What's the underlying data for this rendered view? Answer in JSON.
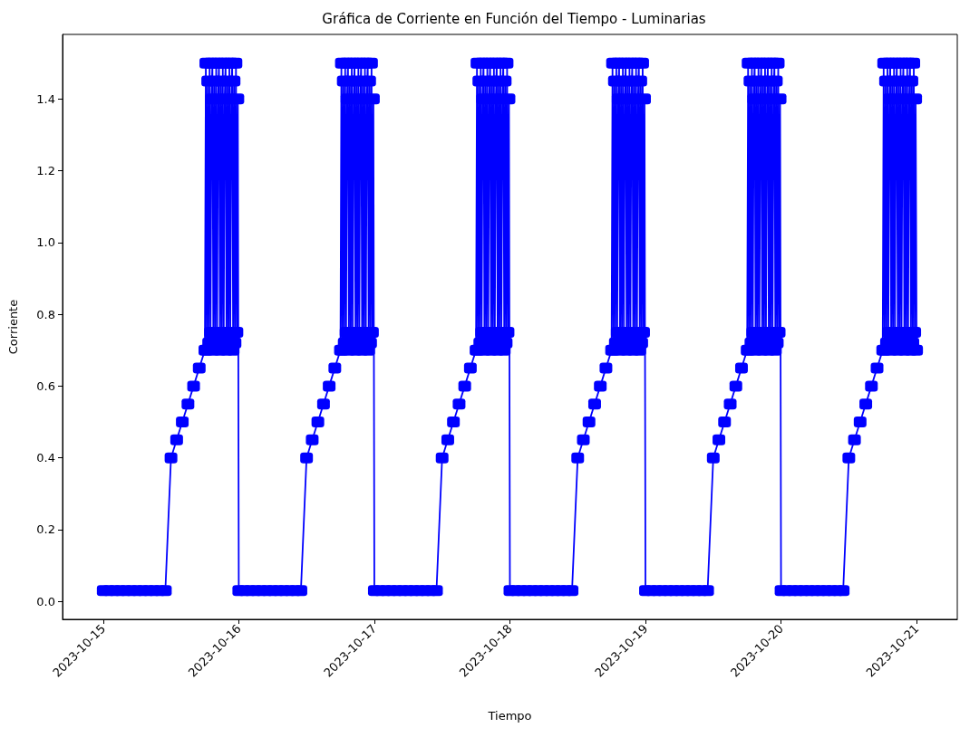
{
  "chart_data": {
    "type": "line",
    "title": "Gráfica de Corriente en Función del Tiempo - Luminarias",
    "xlabel": "Tiempo",
    "ylabel": "Corriente",
    "series": [
      {
        "color": "#0000ff",
        "x": [
          "2023-10-15T00:00",
          "2023-10-15T01:00",
          "2023-10-15T02:00",
          "2023-10-15T03:00",
          "2023-10-15T04:00",
          "2023-10-15T05:00",
          "2023-10-15T06:00",
          "2023-10-15T07:00",
          "2023-10-15T08:00",
          "2023-10-15T09:00",
          "2023-10-15T10:00",
          "2023-10-15T11:00",
          "2023-10-15T12:00",
          "2023-10-15T13:00",
          "2023-10-15T14:00",
          "2023-10-15T15:00",
          "2023-10-15T16:00",
          "2023-10-15T17:00",
          "2023-10-15T18:00",
          "2023-10-15T18:10",
          "2023-10-15T18:20",
          "2023-10-15T18:30",
          "2023-10-15T18:40",
          "2023-10-15T18:50",
          "2023-10-15T19:00",
          "2023-10-15T19:10",
          "2023-10-15T19:20",
          "2023-10-15T19:30",
          "2023-10-15T19:40",
          "2023-10-15T19:50",
          "2023-10-15T20:00",
          "2023-10-15T20:10",
          "2023-10-15T20:20",
          "2023-10-15T20:30",
          "2023-10-15T20:40",
          "2023-10-15T20:50",
          "2023-10-15T21:00",
          "2023-10-15T21:10",
          "2023-10-15T21:20",
          "2023-10-15T21:30",
          "2023-10-15T21:40",
          "2023-10-15T21:50",
          "2023-10-15T22:00",
          "2023-10-15T22:10",
          "2023-10-15T22:20",
          "2023-10-15T22:30",
          "2023-10-15T22:40",
          "2023-10-15T22:50",
          "2023-10-15T23:00",
          "2023-10-15T23:10",
          "2023-10-15T23:20",
          "2023-10-15T23:30",
          "2023-10-15T23:40",
          "2023-10-15T23:50",
          "2023-10-16T00:00",
          "2023-10-16T01:00",
          "2023-10-16T02:00",
          "2023-10-16T03:00",
          "2023-10-16T04:00",
          "2023-10-16T05:00",
          "2023-10-16T06:00",
          "2023-10-16T07:00",
          "2023-10-16T08:00",
          "2023-10-16T09:00",
          "2023-10-16T10:00",
          "2023-10-16T11:00",
          "2023-10-16T12:00",
          "2023-10-16T13:00",
          "2023-10-16T14:00",
          "2023-10-16T15:00",
          "2023-10-16T16:00",
          "2023-10-16T17:00",
          "2023-10-16T18:00",
          "2023-10-16T18:10",
          "2023-10-16T18:20",
          "2023-10-16T18:30",
          "2023-10-16T18:40",
          "2023-10-16T18:50",
          "2023-10-16T19:00",
          "2023-10-16T19:10",
          "2023-10-16T19:20",
          "2023-10-16T19:30",
          "2023-10-16T19:40",
          "2023-10-16T19:50",
          "2023-10-16T20:00",
          "2023-10-16T20:10",
          "2023-10-16T20:20",
          "2023-10-16T20:30",
          "2023-10-16T20:40",
          "2023-10-16T20:50",
          "2023-10-16T21:00",
          "2023-10-16T21:10",
          "2023-10-16T21:20",
          "2023-10-16T21:30",
          "2023-10-16T21:40",
          "2023-10-16T21:50",
          "2023-10-16T22:00",
          "2023-10-16T22:10",
          "2023-10-16T22:20",
          "2023-10-16T22:30",
          "2023-10-16T22:40",
          "2023-10-16T22:50",
          "2023-10-16T23:00",
          "2023-10-16T23:10",
          "2023-10-16T23:20",
          "2023-10-16T23:30",
          "2023-10-16T23:40",
          "2023-10-16T23:50",
          "2023-10-17T00:00",
          "2023-10-17T01:00",
          "2023-10-17T02:00",
          "2023-10-17T03:00",
          "2023-10-17T04:00",
          "2023-10-17T05:00",
          "2023-10-17T06:00",
          "2023-10-17T07:00",
          "2023-10-17T08:00",
          "2023-10-17T09:00",
          "2023-10-17T10:00",
          "2023-10-17T11:00",
          "2023-10-17T12:00",
          "2023-10-17T13:00",
          "2023-10-17T14:00",
          "2023-10-17T15:00",
          "2023-10-17T16:00",
          "2023-10-17T17:00",
          "2023-10-17T18:00",
          "2023-10-17T18:10",
          "2023-10-17T18:20",
          "2023-10-17T18:30",
          "2023-10-17T18:40",
          "2023-10-17T18:50",
          "2023-10-17T19:00",
          "2023-10-17T19:10",
          "2023-10-17T19:20",
          "2023-10-17T19:30",
          "2023-10-17T19:40",
          "2023-10-17T19:50",
          "2023-10-17T20:00",
          "2023-10-17T20:10",
          "2023-10-17T20:20",
          "2023-10-17T20:30",
          "2023-10-17T20:40",
          "2023-10-17T20:50",
          "2023-10-17T21:00",
          "2023-10-17T21:10",
          "2023-10-17T21:20",
          "2023-10-17T21:30",
          "2023-10-17T21:40",
          "2023-10-17T21:50",
          "2023-10-17T22:00",
          "2023-10-17T22:10",
          "2023-10-17T22:20",
          "2023-10-17T22:30",
          "2023-10-17T22:40",
          "2023-10-17T22:50",
          "2023-10-17T23:00",
          "2023-10-17T23:10",
          "2023-10-17T23:20",
          "2023-10-17T23:30",
          "2023-10-17T23:40",
          "2023-10-17T23:50",
          "2023-10-18T00:00",
          "2023-10-18T01:00",
          "2023-10-18T02:00",
          "2023-10-18T03:00",
          "2023-10-18T04:00",
          "2023-10-18T05:00",
          "2023-10-18T06:00",
          "2023-10-18T07:00",
          "2023-10-18T08:00",
          "2023-10-18T09:00",
          "2023-10-18T10:00",
          "2023-10-18T11:00",
          "2023-10-18T12:00",
          "2023-10-18T13:00",
          "2023-10-18T14:00",
          "2023-10-18T15:00",
          "2023-10-18T16:00",
          "2023-10-18T17:00",
          "2023-10-18T18:00",
          "2023-10-18T18:10",
          "2023-10-18T18:20",
          "2023-10-18T18:30",
          "2023-10-18T18:40",
          "2023-10-18T18:50",
          "2023-10-18T19:00",
          "2023-10-18T19:10",
          "2023-10-18T19:20",
          "2023-10-18T19:30",
          "2023-10-18T19:40",
          "2023-10-18T19:50",
          "2023-10-18T20:00",
          "2023-10-18T20:10",
          "2023-10-18T20:20",
          "2023-10-18T20:30",
          "2023-10-18T20:40",
          "2023-10-18T20:50",
          "2023-10-18T21:00",
          "2023-10-18T21:10",
          "2023-10-18T21:20",
          "2023-10-18T21:30",
          "2023-10-18T21:40",
          "2023-10-18T21:50",
          "2023-10-18T22:00",
          "2023-10-18T22:10",
          "2023-10-18T22:20",
          "2023-10-18T22:30",
          "2023-10-18T22:40",
          "2023-10-18T22:50",
          "2023-10-18T23:00",
          "2023-10-18T23:10",
          "2023-10-18T23:20",
          "2023-10-18T23:30",
          "2023-10-18T23:40",
          "2023-10-18T23:50",
          "2023-10-19T00:00",
          "2023-10-19T01:00",
          "2023-10-19T02:00",
          "2023-10-19T03:00",
          "2023-10-19T04:00",
          "2023-10-19T05:00",
          "2023-10-19T06:00",
          "2023-10-19T07:00",
          "2023-10-19T08:00",
          "2023-10-19T09:00",
          "2023-10-19T10:00",
          "2023-10-19T11:00",
          "2023-10-19T12:00",
          "2023-10-19T13:00",
          "2023-10-19T14:00",
          "2023-10-19T15:00",
          "2023-10-19T16:00",
          "2023-10-19T17:00",
          "2023-10-19T18:00",
          "2023-10-19T18:10",
          "2023-10-19T18:20",
          "2023-10-19T18:30",
          "2023-10-19T18:40",
          "2023-10-19T18:50",
          "2023-10-19T19:00",
          "2023-10-19T19:10",
          "2023-10-19T19:20",
          "2023-10-19T19:30",
          "2023-10-19T19:40",
          "2023-10-19T19:50",
          "2023-10-19T20:00",
          "2023-10-19T20:10",
          "2023-10-19T20:20",
          "2023-10-19T20:30",
          "2023-10-19T20:40",
          "2023-10-19T20:50",
          "2023-10-19T21:00",
          "2023-10-19T21:10",
          "2023-10-19T21:20",
          "2023-10-19T21:30",
          "2023-10-19T21:40",
          "2023-10-19T21:50",
          "2023-10-19T22:00",
          "2023-10-19T22:10",
          "2023-10-19T22:20",
          "2023-10-19T22:30",
          "2023-10-19T22:40",
          "2023-10-19T22:50",
          "2023-10-19T23:00",
          "2023-10-19T23:10",
          "2023-10-19T23:20",
          "2023-10-19T23:30",
          "2023-10-19T23:40",
          "2023-10-19T23:50",
          "2023-10-20T00:00",
          "2023-10-20T01:00",
          "2023-10-20T02:00",
          "2023-10-20T03:00",
          "2023-10-20T04:00",
          "2023-10-20T05:00",
          "2023-10-20T06:00",
          "2023-10-20T07:00",
          "2023-10-20T08:00",
          "2023-10-20T09:00",
          "2023-10-20T10:00",
          "2023-10-20T11:00",
          "2023-10-20T12:00",
          "2023-10-20T13:00",
          "2023-10-20T14:00",
          "2023-10-20T15:00",
          "2023-10-20T16:00",
          "2023-10-20T17:00",
          "2023-10-20T18:00",
          "2023-10-20T18:10",
          "2023-10-20T18:20",
          "2023-10-20T18:30",
          "2023-10-20T18:40",
          "2023-10-20T18:50",
          "2023-10-20T19:00",
          "2023-10-20T19:10",
          "2023-10-20T19:20",
          "2023-10-20T19:30",
          "2023-10-20T19:40",
          "2023-10-20T19:50",
          "2023-10-20T20:00",
          "2023-10-20T20:10",
          "2023-10-20T20:20",
          "2023-10-20T20:30",
          "2023-10-20T20:40",
          "2023-10-20T20:50",
          "2023-10-20T21:00",
          "2023-10-20T21:10",
          "2023-10-20T21:20",
          "2023-10-20T21:30",
          "2023-10-20T21:40",
          "2023-10-20T21:50",
          "2023-10-20T22:00",
          "2023-10-20T22:10",
          "2023-10-20T22:20",
          "2023-10-20T22:30",
          "2023-10-20T22:40",
          "2023-10-20T22:50",
          "2023-10-20T23:00",
          "2023-10-20T23:10",
          "2023-10-20T23:20",
          "2023-10-20T23:30",
          "2023-10-20T23:40",
          "2023-10-20T23:50",
          "2023-10-21T00:00"
        ],
        "values": [
          0.03,
          0.03,
          0.03,
          0.03,
          0.03,
          0.03,
          0.03,
          0.03,
          0.03,
          0.03,
          0.03,
          0.03,
          0.4,
          0.45,
          0.5,
          0.55,
          0.6,
          0.65,
          0.7,
          1.5,
          0.7,
          1.45,
          0.72,
          1.5,
          0.75,
          1.4,
          1.5,
          0.7,
          1.45,
          0.72,
          1.5,
          0.75,
          1.4,
          1.5,
          0.7,
          1.45,
          0.72,
          1.5,
          0.75,
          1.4,
          1.5,
          0.7,
          1.45,
          0.72,
          1.5,
          0.75,
          1.4,
          1.5,
          0.7,
          1.45,
          0.72,
          1.5,
          0.75,
          1.4,
          0.03,
          0.03,
          0.03,
          0.03,
          0.03,
          0.03,
          0.03,
          0.03,
          0.03,
          0.03,
          0.03,
          0.03,
          0.4,
          0.45,
          0.5,
          0.55,
          0.6,
          0.65,
          0.7,
          1.5,
          0.7,
          1.45,
          0.72,
          1.5,
          0.75,
          1.4,
          1.5,
          0.7,
          1.45,
          0.72,
          1.5,
          0.75,
          1.4,
          1.5,
          0.7,
          1.45,
          0.72,
          1.5,
          0.75,
          1.4,
          1.5,
          0.7,
          1.45,
          0.72,
          1.5,
          0.75,
          1.4,
          1.5,
          0.7,
          1.45,
          0.72,
          1.5,
          0.75,
          1.4,
          0.03,
          0.03,
          0.03,
          0.03,
          0.03,
          0.03,
          0.03,
          0.03,
          0.03,
          0.03,
          0.03,
          0.03,
          0.4,
          0.45,
          0.5,
          0.55,
          0.6,
          0.65,
          0.7,
          1.5,
          0.7,
          1.45,
          0.72,
          1.5,
          0.75,
          1.4,
          1.5,
          0.7,
          1.45,
          0.72,
          1.5,
          0.75,
          1.4,
          1.5,
          0.7,
          1.45,
          0.72,
          1.5,
          0.75,
          1.4,
          1.5,
          0.7,
          1.45,
          0.72,
          1.5,
          0.75,
          1.4,
          1.5,
          0.7,
          1.45,
          0.72,
          1.5,
          0.75,
          1.4,
          0.03,
          0.03,
          0.03,
          0.03,
          0.03,
          0.03,
          0.03,
          0.03,
          0.03,
          0.03,
          0.03,
          0.03,
          0.4,
          0.45,
          0.5,
          0.55,
          0.6,
          0.65,
          0.7,
          1.5,
          0.7,
          1.45,
          0.72,
          1.5,
          0.75,
          1.4,
          1.5,
          0.7,
          1.45,
          0.72,
          1.5,
          0.75,
          1.4,
          1.5,
          0.7,
          1.45,
          0.72,
          1.5,
          0.75,
          1.4,
          1.5,
          0.7,
          1.45,
          0.72,
          1.5,
          0.75,
          1.4,
          1.5,
          0.7,
          1.45,
          0.72,
          1.5,
          0.75,
          1.4,
          0.03,
          0.03,
          0.03,
          0.03,
          0.03,
          0.03,
          0.03,
          0.03,
          0.03,
          0.03,
          0.03,
          0.03,
          0.4,
          0.45,
          0.5,
          0.55,
          0.6,
          0.65,
          0.7,
          1.5,
          0.7,
          1.45,
          0.72,
          1.5,
          0.75,
          1.4,
          1.5,
          0.7,
          1.45,
          0.72,
          1.5,
          0.75,
          1.4,
          1.5,
          0.7,
          1.45,
          0.72,
          1.5,
          0.75,
          1.4,
          1.5,
          0.7,
          1.45,
          0.72,
          1.5,
          0.75,
          1.4,
          1.5,
          0.7,
          1.45,
          0.72,
          1.5,
          0.75,
          1.4,
          0.03,
          0.03,
          0.03,
          0.03,
          0.03,
          0.03,
          0.03,
          0.03,
          0.03,
          0.03,
          0.03,
          0.03,
          0.4,
          0.45,
          0.5,
          0.55,
          0.6,
          0.65,
          0.7,
          1.5,
          0.7,
          1.45,
          0.72,
          1.5,
          0.75,
          1.4,
          1.5,
          0.7,
          1.45,
          0.72,
          1.5,
          0.75,
          1.4,
          1.5,
          0.7,
          1.45,
          0.72,
          1.5,
          0.75,
          1.4,
          1.5,
          0.7,
          1.45,
          0.72,
          1.5,
          0.75,
          1.4,
          1.5,
          0.7,
          1.45,
          0.72,
          1.5,
          0.75,
          1.4,
          0.7
        ]
      }
    ],
    "xlim": [
      "2023-10-14T16:48",
      "2023-10-21T07:12"
    ],
    "xticks": [
      "2023-10-15",
      "2023-10-16",
      "2023-10-17",
      "2023-10-18",
      "2023-10-19",
      "2023-10-20",
      "2023-10-21"
    ],
    "ylim": [
      -0.05,
      1.58
    ],
    "yticks": [
      {
        "value": 0,
        "label": "0.0"
      },
      {
        "value": 0.2,
        "label": "0.2"
      },
      {
        "value": 0.4,
        "label": "0.4"
      },
      {
        "value": 0.6,
        "label": "0.6"
      },
      {
        "value": 0.8,
        "label": "0.8"
      },
      {
        "value": 1,
        "label": "1.0"
      },
      {
        "value": 1.2,
        "label": "1.2"
      },
      {
        "value": 1.4,
        "label": "1.4"
      }
    ],
    "grid": false,
    "marker": "square",
    "line_style": "solid"
  }
}
